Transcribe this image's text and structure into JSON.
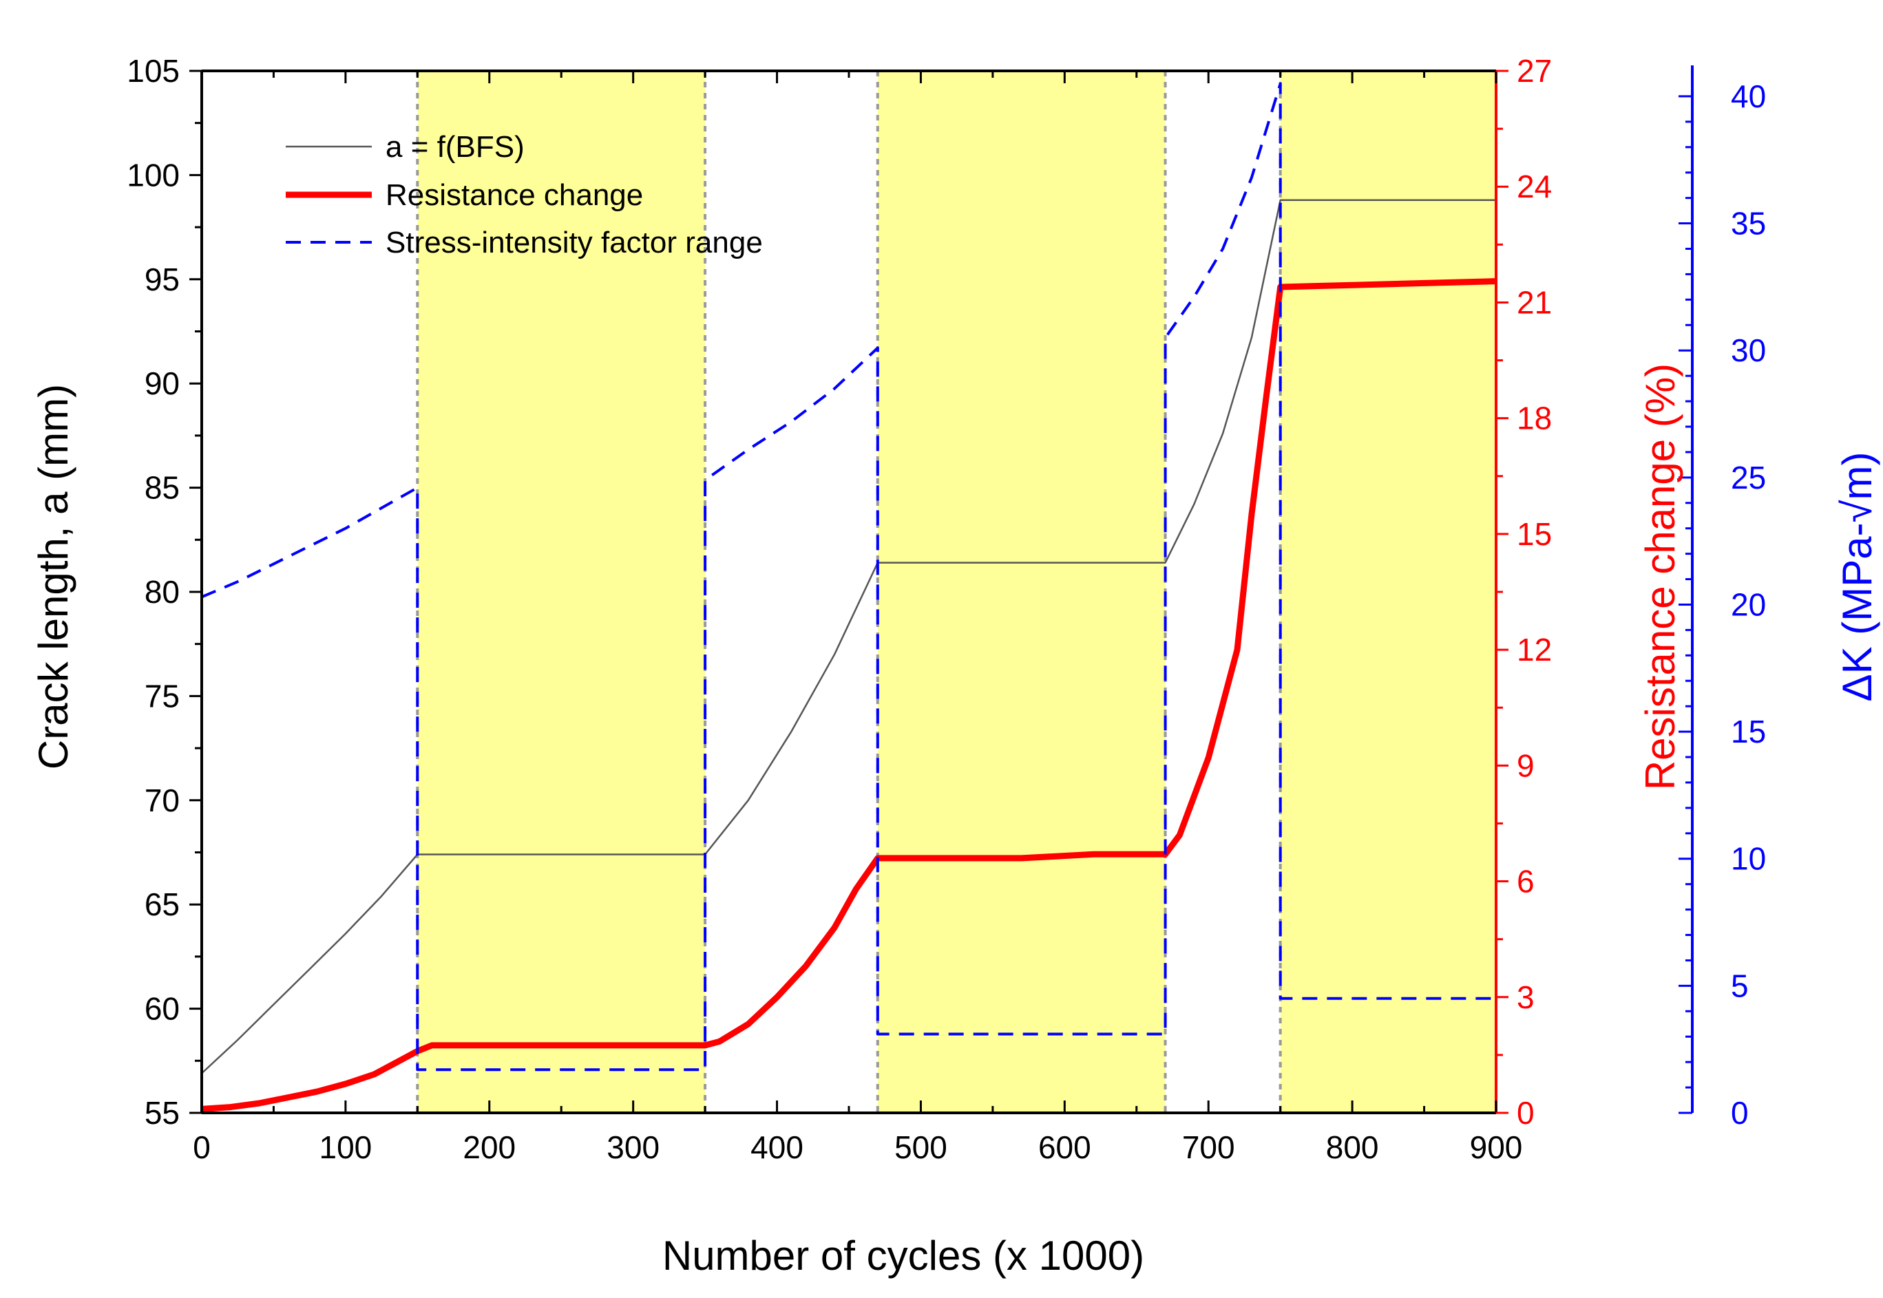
{
  "chart_data": {
    "type": "line",
    "xlabel": "Number of cycles (x 1000)",
    "ylabel_left": "Crack length, a (mm)",
    "ylabel_right1": "Resistance change (%)",
    "ylabel_right2": "ΔK (MPa-√m)",
    "xlim": [
      0,
      900
    ],
    "ylim_left": [
      55,
      105
    ],
    "ylim_right1": [
      0,
      27
    ],
    "ylim_right2": [
      0,
      41
    ],
    "x_ticks": [
      0,
      100,
      200,
      300,
      400,
      500,
      600,
      700,
      800,
      900
    ],
    "y_left_ticks": [
      55,
      60,
      65,
      70,
      75,
      80,
      85,
      90,
      95,
      100,
      105
    ],
    "y_right1_ticks": [
      0,
      3,
      6,
      9,
      12,
      15,
      18,
      21,
      24,
      27
    ],
    "y_right2_ticks": [
      0,
      5,
      10,
      15,
      20,
      25,
      30,
      35,
      40
    ],
    "colors": {
      "crack": "#555555",
      "resistance": "#ff0000",
      "dk": "#0000ff",
      "shade": "#ffff99",
      "boundary": "#999999"
    },
    "shaded_regions": [
      [
        150,
        350
      ],
      [
        470,
        670
      ],
      [
        750,
        900
      ]
    ],
    "legend": [
      {
        "label": "a = f(BFS)",
        "style": "thin-gray"
      },
      {
        "label": "Resistance change",
        "style": "thick-red"
      },
      {
        "label": "Stress-intensity factor range",
        "style": "dashed-blue"
      }
    ],
    "series": [
      {
        "name": "a = f(BFS)",
        "axis": "left",
        "x": [
          0,
          25,
          50,
          75,
          100,
          125,
          150,
          200,
          250,
          300,
          350,
          380,
          410,
          440,
          470,
          520,
          570,
          620,
          670,
          690,
          710,
          730,
          750,
          800,
          850,
          900
        ],
        "y": [
          56.9,
          58.5,
          60.2,
          61.9,
          63.6,
          65.4,
          67.4,
          67.4,
          67.4,
          67.4,
          67.4,
          70.0,
          73.3,
          77.0,
          81.4,
          81.4,
          81.4,
          81.4,
          81.4,
          84.2,
          87.6,
          92.2,
          98.8,
          98.8,
          98.8,
          98.8
        ]
      },
      {
        "name": "Resistance change",
        "axis": "right1",
        "x": [
          0,
          20,
          40,
          60,
          80,
          100,
          120,
          135,
          150,
          160,
          200,
          250,
          300,
          350,
          360,
          380,
          400,
          420,
          440,
          455,
          470,
          520,
          570,
          620,
          670,
          680,
          700,
          720,
          730,
          740,
          750,
          800,
          850,
          900
        ],
        "y": [
          0.1,
          0.15,
          0.25,
          0.4,
          0.55,
          0.75,
          1.0,
          1.3,
          1.6,
          1.75,
          1.75,
          1.75,
          1.75,
          1.75,
          1.85,
          2.3,
          3.0,
          3.8,
          4.8,
          5.8,
          6.6,
          6.6,
          6.6,
          6.7,
          6.7,
          7.2,
          9.2,
          12.0,
          15.5,
          18.5,
          21.4,
          21.45,
          21.5,
          21.55
        ]
      },
      {
        "name": "Stress-intensity factor range",
        "axis": "right2",
        "x": [
          0,
          25,
          50,
          75,
          100,
          125,
          150,
          150,
          350,
          350,
          380,
          410,
          440,
          470,
          470,
          670,
          670,
          690,
          710,
          730,
          750,
          750,
          900
        ],
        "y": [
          20.3,
          20.9,
          21.6,
          22.3,
          23.0,
          23.8,
          24.6,
          1.7,
          1.7,
          24.9,
          26.1,
          27.2,
          28.5,
          30.1,
          3.1,
          3.1,
          30.5,
          32.1,
          34.0,
          36.8,
          40.5,
          4.5,
          4.5
        ]
      }
    ]
  }
}
